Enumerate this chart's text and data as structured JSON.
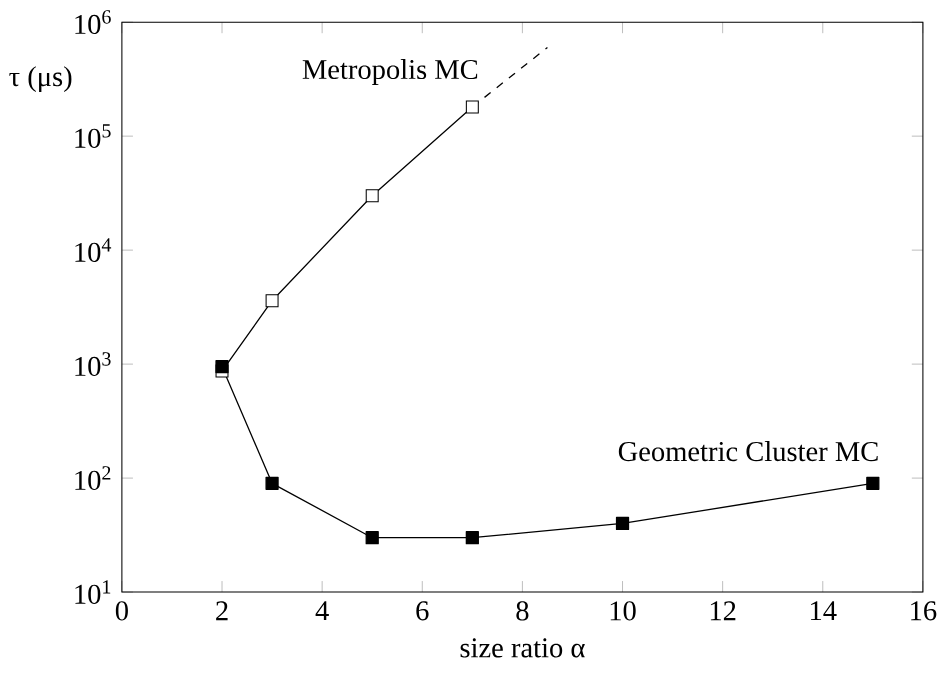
{
  "chart_data": {
    "type": "line",
    "xlabel": "size ratio α",
    "ylabel": "τ (μs)",
    "log": "y",
    "marker": "square",
    "xlim": [
      0,
      16
    ],
    "xticks": [
      0,
      2,
      4,
      6,
      8,
      10,
      12,
      14,
      16
    ],
    "ylim": [
      10,
      1000000
    ],
    "yticks": [
      {
        "value": 10,
        "label": "10$^{1}$"
      },
      {
        "value": 100,
        "label": "10$^{2}$"
      },
      {
        "value": 1000,
        "label": "10$^{3}$"
      },
      {
        "value": 10000,
        "label": "10$^{4}$"
      },
      {
        "value": 100000,
        "label": "10$^{5}$"
      },
      {
        "value": 1000000,
        "label": "10$^{6}$"
      }
    ],
    "series": [
      {
        "name": "Metropolis MC",
        "color": "#000000",
        "colors": [
          "#ffffff",
          "#ffffff",
          "#ffffff",
          "#ffffff"
        ],
        "x": [
          2,
          3,
          5,
          7
        ],
        "values": [
          870,
          3600,
          30000,
          180000
        ]
      },
      {
        "color": "#000000",
        "line_style": "dashed",
        "marker": "none",
        "x": [
          7,
          8.5
        ],
        "values": [
          180000,
          600000
        ]
      },
      {
        "name": "Geometric Cluster MC",
        "color": "#000000",
        "x": [
          2,
          3,
          5,
          7,
          10,
          15
        ],
        "values": [
          950,
          90,
          30,
          30,
          40,
          90
        ]
      }
    ]
  }
}
